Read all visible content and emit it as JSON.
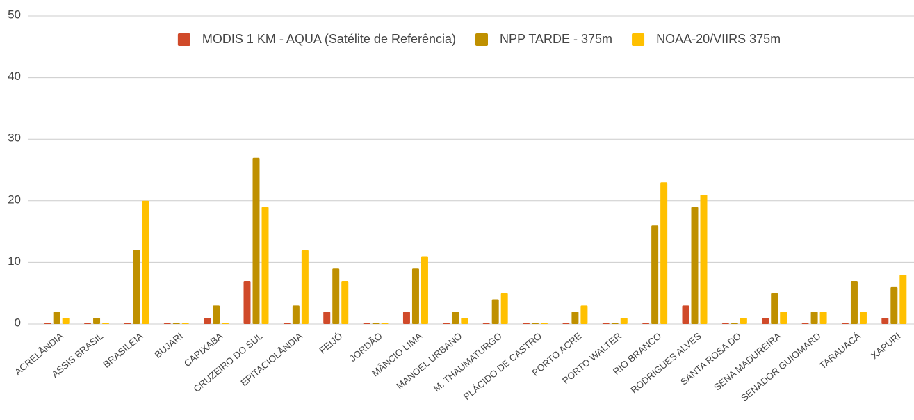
{
  "chart_data": {
    "type": "bar",
    "categories": [
      "ACRELÂNDIA",
      "ASSIS BRASIL",
      "BRASILEIA",
      "BUJARI",
      "CAPIXABA",
      "CRUZEIRO DO SUL",
      "EPITACIOLÂNDIA",
      "FEIJÓ",
      "JORDÃO",
      "MÂNCIO LIMA",
      "MANOEL URBANO",
      "M. THAUMATURGO",
      "PLÁCIDO DE CASTRO",
      "PORTO ACRE",
      "PORTO WALTER",
      "RIO BRANCO",
      "RODRIGUES ALVES",
      "SANTA ROSA DO",
      "SENA MADUREIRA",
      "SENADOR GUIOMARD",
      "TARAUACÁ",
      "XAPURI"
    ],
    "series": [
      {
        "name": "MODIS 1 KM - AQUA (Satélite de Referência)",
        "color": "#d04a2a",
        "values": [
          0,
          0,
          0,
          0,
          1,
          7,
          0,
          2,
          0,
          2,
          0,
          0,
          0,
          0,
          0,
          0,
          3,
          0,
          1,
          0,
          0,
          1
        ]
      },
      {
        "name": "NPP TARDE - 375m",
        "color": "#bf9000",
        "values": [
          2,
          1,
          12,
          0,
          3,
          27,
          3,
          9,
          0,
          9,
          2,
          4,
          0,
          2,
          0,
          16,
          19,
          0,
          5,
          2,
          7,
          6
        ]
      },
      {
        "name": "NOAA-20/VIIRS 375m",
        "color": "#ffc000",
        "values": [
          1,
          0,
          20,
          0,
          0,
          19,
          12,
          7,
          0,
          11,
          1,
          5,
          0,
          3,
          1,
          23,
          21,
          1,
          2,
          2,
          2,
          8
        ]
      }
    ],
    "ylim": [
      0,
      50
    ],
    "yticks": [
      0,
      10,
      20,
      30,
      40,
      50
    ],
    "grid": true,
    "legend": "top"
  }
}
